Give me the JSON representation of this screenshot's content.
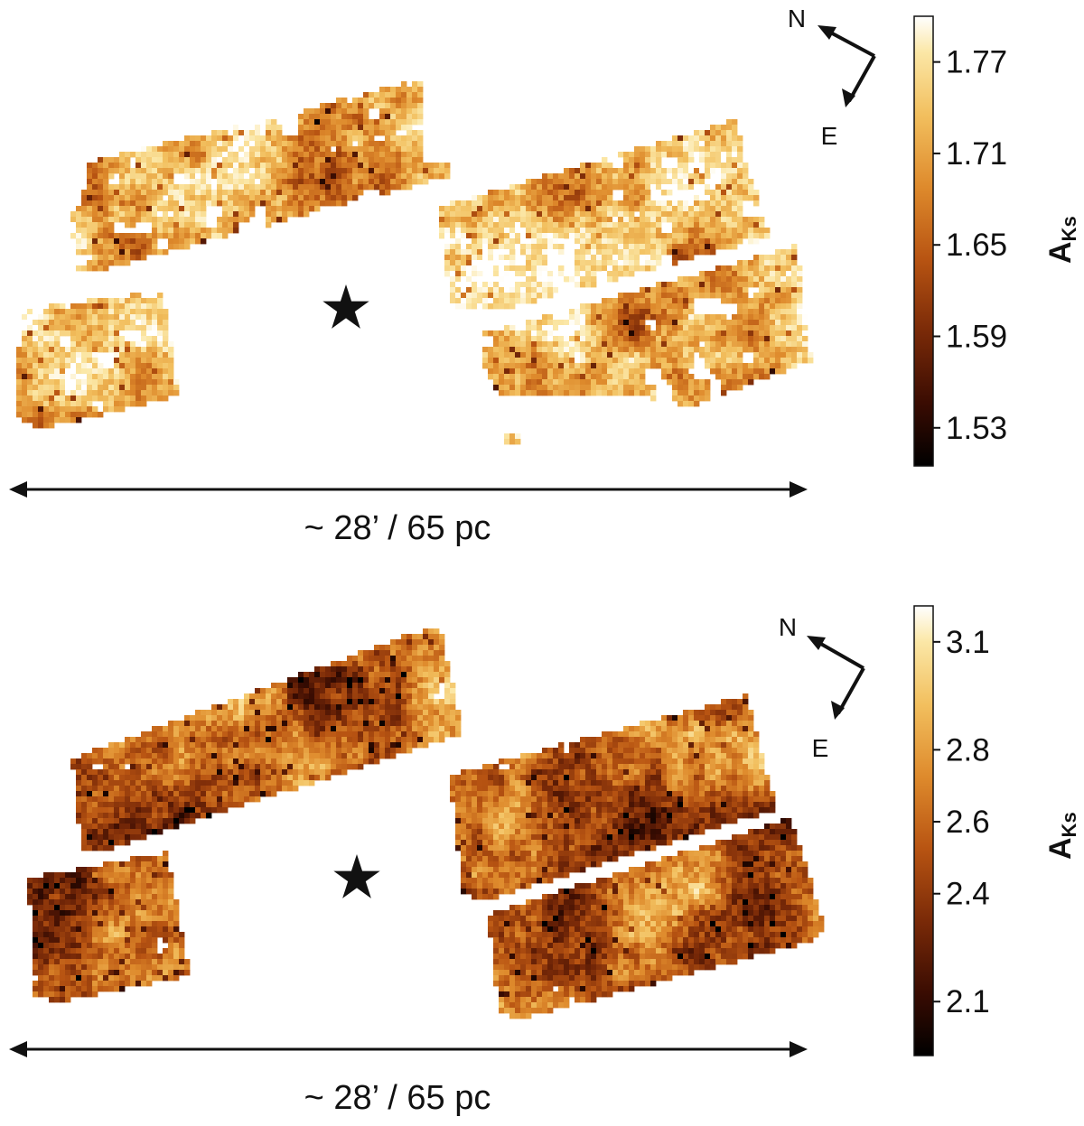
{
  "maps": [
    {
      "colorbar": {
        "label_main": "A",
        "label_sub": "Ks",
        "ticks": [
          "1.77",
          "1.71",
          "1.65",
          "1.59",
          "1.53"
        ],
        "range": [
          1.505,
          1.8
        ]
      },
      "compass": {
        "north": "N",
        "east": "E"
      },
      "scale_bar": {
        "text": "~ 28’ / 65 pc"
      },
      "marker": "star-icon",
      "seed": 11,
      "dark_bias": 0.0
    },
    {
      "colorbar": {
        "label_main": "A",
        "label_sub": "Ks",
        "ticks": [
          "3.1",
          "2.8",
          "2.6",
          "2.4",
          "2.1"
        ],
        "range": [
          1.95,
          3.2
        ]
      },
      "compass": {
        "north": "N",
        "east": "E"
      },
      "scale_bar": {
        "text": "~ 28’ / 65 pc"
      },
      "marker": "star-icon",
      "seed": 29,
      "dark_bias": 0.25
    }
  ],
  "colors": {
    "colormap": [
      "#000000",
      "#3a0c02",
      "#7a2a08",
      "#b85412",
      "#de8a2c",
      "#f2bf5e",
      "#fbe7a6",
      "#ffffff"
    ],
    "ink": "#111111"
  }
}
